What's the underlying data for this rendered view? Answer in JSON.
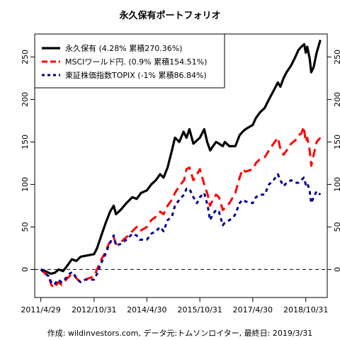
{
  "chart_data": {
    "type": "line",
    "title": "永久保有ポートフォリオ",
    "caption": "作成: wildinvestors.com, データ元:トムソンロイター, 最終日: 2019/3/31",
    "xlabel": "",
    "ylabel": "",
    "x_tick_labels": [
      "2011/4/29",
      "2012/10/31",
      "2014/4/30",
      "2015/10/31",
      "2017/4/30",
      "2018/10/31"
    ],
    "x_tick_dates": [
      "2011-04-29",
      "2012-10-31",
      "2014-04-30",
      "2015-10-31",
      "2017-04-30",
      "2018-10-31"
    ],
    "xlim": [
      "2011-02-25",
      "2019-06-10"
    ],
    "y_ticks": [
      0,
      50,
      100,
      150,
      200,
      250
    ],
    "ylim": [
      -33,
      277
    ],
    "reference_line": 0,
    "grid": false,
    "legend": {
      "position": "top-left",
      "entries": [
        "永久保有 (4.28% 累積270.36%)",
        "MSCIワールド円. (0.9% 累積154.51%)",
        "東証株価指数TOPIX (-1% 累積86.84%)"
      ]
    },
    "series": [
      {
        "name": "永久保有",
        "color": "#000000",
        "style": "solid",
        "points": [
          [
            "2011-04-29",
            0
          ],
          [
            "2011-06-15",
            -2
          ],
          [
            "2011-08-10",
            -5
          ],
          [
            "2011-09-20",
            -4
          ],
          [
            "2011-11-01",
            0
          ],
          [
            "2011-12-15",
            -2
          ],
          [
            "2012-02-01",
            5
          ],
          [
            "2012-03-15",
            12
          ],
          [
            "2012-05-01",
            10
          ],
          [
            "2012-06-15",
            15
          ],
          [
            "2012-08-01",
            16
          ],
          [
            "2012-10-31",
            18
          ],
          [
            "2012-12-01",
            25
          ],
          [
            "2013-01-15",
            40
          ],
          [
            "2013-03-01",
            55
          ],
          [
            "2013-04-15",
            68
          ],
          [
            "2013-05-22",
            75
          ],
          [
            "2013-06-15",
            65
          ],
          [
            "2013-08-01",
            70
          ],
          [
            "2013-10-01",
            78
          ],
          [
            "2013-12-01",
            85
          ],
          [
            "2014-01-15",
            83
          ],
          [
            "2014-03-01",
            90
          ],
          [
            "2014-04-30",
            93
          ],
          [
            "2014-06-15",
            100
          ],
          [
            "2014-08-01",
            105
          ],
          [
            "2014-09-15",
            112
          ],
          [
            "2014-10-20",
            108
          ],
          [
            "2014-12-01",
            120
          ],
          [
            "2015-01-15",
            140
          ],
          [
            "2015-02-15",
            155
          ],
          [
            "2015-04-01",
            150
          ],
          [
            "2015-05-15",
            162
          ],
          [
            "2015-06-15",
            155
          ],
          [
            "2015-07-15",
            165
          ],
          [
            "2015-08-25",
            148
          ],
          [
            "2015-10-31",
            155
          ],
          [
            "2015-12-15",
            165
          ],
          [
            "2016-01-15",
            150
          ],
          [
            "2016-02-15",
            140
          ],
          [
            "2016-03-15",
            145
          ],
          [
            "2016-04-15",
            150
          ],
          [
            "2016-05-15",
            148
          ],
          [
            "2016-06-24",
            145
          ],
          [
            "2016-07-15",
            150
          ],
          [
            "2016-09-01",
            145
          ],
          [
            "2016-11-01",
            145
          ],
          [
            "2016-12-15",
            158
          ],
          [
            "2017-01-15",
            162
          ],
          [
            "2017-02-15",
            165
          ],
          [
            "2017-04-30",
            170
          ],
          [
            "2017-06-01",
            178
          ],
          [
            "2017-07-15",
            185
          ],
          [
            "2017-09-01",
            190
          ],
          [
            "2017-10-15",
            200
          ],
          [
            "2017-12-01",
            210
          ],
          [
            "2018-01-15",
            220
          ],
          [
            "2018-02-10",
            215
          ],
          [
            "2018-03-15",
            225
          ],
          [
            "2018-04-15",
            232
          ],
          [
            "2018-06-01",
            240
          ],
          [
            "2018-07-15",
            250
          ],
          [
            "2018-08-15",
            258
          ],
          [
            "2018-09-15",
            262
          ],
          [
            "2018-10-15",
            265
          ],
          [
            "2018-10-31",
            255
          ],
          [
            "2018-11-15",
            262
          ],
          [
            "2018-12-10",
            248
          ],
          [
            "2018-12-26",
            232
          ],
          [
            "2019-01-20",
            238
          ],
          [
            "2019-02-20",
            255
          ],
          [
            "2019-03-31",
            270
          ]
        ]
      },
      {
        "name": "MSCIワールド円.",
        "color": "#ff0000",
        "style": "dashed",
        "points": [
          [
            "2011-04-29",
            0
          ],
          [
            "2011-06-15",
            -5
          ],
          [
            "2011-07-20",
            -8
          ],
          [
            "2011-08-15",
            -18
          ],
          [
            "2011-09-15",
            -22
          ],
          [
            "2011-10-25",
            -15
          ],
          [
            "2011-12-01",
            -18
          ],
          [
            "2012-01-15",
            -12
          ],
          [
            "2012-02-20",
            -8
          ],
          [
            "2012-03-20",
            -5
          ],
          [
            "2012-05-15",
            -12
          ],
          [
            "2012-06-15",
            -15
          ],
          [
            "2012-08-01",
            -12
          ],
          [
            "2012-10-31",
            -8
          ],
          [
            "2012-12-01",
            0
          ],
          [
            "2013-01-15",
            12
          ],
          [
            "2013-02-15",
            18
          ],
          [
            "2013-04-01",
            30
          ],
          [
            "2013-05-22",
            38
          ],
          [
            "2013-06-15",
            30
          ],
          [
            "2013-08-01",
            32
          ],
          [
            "2013-10-01",
            38
          ],
          [
            "2013-12-01",
            45
          ],
          [
            "2014-01-15",
            50
          ],
          [
            "2014-02-15",
            45
          ],
          [
            "2014-04-30",
            50
          ],
          [
            "2014-06-15",
            58
          ],
          [
            "2014-08-01",
            62
          ],
          [
            "2014-09-15",
            68
          ],
          [
            "2014-10-20",
            65
          ],
          [
            "2014-12-01",
            75
          ],
          [
            "2015-01-15",
            82
          ],
          [
            "2015-02-15",
            90
          ],
          [
            "2015-04-01",
            98
          ],
          [
            "2015-05-20",
            105
          ],
          [
            "2015-06-15",
            118
          ],
          [
            "2015-07-15",
            120
          ],
          [
            "2015-08-25",
            105
          ],
          [
            "2015-10-01",
            112
          ],
          [
            "2015-10-31",
            118
          ],
          [
            "2015-12-15",
            100
          ],
          [
            "2016-01-20",
            88
          ],
          [
            "2016-02-12",
            75
          ],
          [
            "2016-03-15",
            82
          ],
          [
            "2016-04-15",
            88
          ],
          [
            "2016-05-15",
            85
          ],
          [
            "2016-06-24",
            70
          ],
          [
            "2016-07-15",
            72
          ],
          [
            "2016-09-01",
            78
          ],
          [
            "2016-11-01",
            90
          ],
          [
            "2016-12-15",
            108
          ],
          [
            "2017-01-15",
            118
          ],
          [
            "2017-02-15",
            115
          ],
          [
            "2017-04-30",
            118
          ],
          [
            "2017-06-01",
            125
          ],
          [
            "2017-07-15",
            130
          ],
          [
            "2017-09-01",
            132
          ],
          [
            "2017-10-15",
            140
          ],
          [
            "2017-12-01",
            148
          ],
          [
            "2018-01-15",
            155
          ],
          [
            "2018-02-10",
            142
          ],
          [
            "2018-03-15",
            135
          ],
          [
            "2018-04-15",
            140
          ],
          [
            "2018-06-01",
            148
          ],
          [
            "2018-07-15",
            152
          ],
          [
            "2018-08-15",
            158
          ],
          [
            "2018-09-15",
            160
          ],
          [
            "2018-10-10",
            168
          ],
          [
            "2018-10-31",
            150
          ],
          [
            "2018-11-15",
            155
          ],
          [
            "2018-12-10",
            140
          ],
          [
            "2018-12-26",
            122
          ],
          [
            "2019-01-20",
            135
          ],
          [
            "2019-02-20",
            150
          ],
          [
            "2019-03-31",
            155
          ]
        ]
      },
      {
        "name": "東証株価指数TOPIX",
        "color": "#00008b",
        "style": "dotted",
        "points": [
          [
            "2011-04-29",
            0
          ],
          [
            "2011-06-15",
            -5
          ],
          [
            "2011-07-20",
            -8
          ],
          [
            "2011-08-15",
            -15
          ],
          [
            "2011-09-15",
            -18
          ],
          [
            "2011-10-25",
            -12
          ],
          [
            "2011-12-01",
            -15
          ],
          [
            "2012-01-15",
            -10
          ],
          [
            "2012-02-20",
            -5
          ],
          [
            "2012-03-20",
            -3
          ],
          [
            "2012-05-15",
            -12
          ],
          [
            "2012-06-15",
            -15
          ],
          [
            "2012-08-01",
            -12
          ],
          [
            "2012-10-31",
            -12
          ],
          [
            "2012-12-01",
            -5
          ],
          [
            "2013-01-15",
            8
          ],
          [
            "2013-02-15",
            15
          ],
          [
            "2013-04-01",
            28
          ],
          [
            "2013-05-22",
            40
          ],
          [
            "2013-06-15",
            28
          ],
          [
            "2013-08-01",
            30
          ],
          [
            "2013-10-01",
            35
          ],
          [
            "2013-12-01",
            42
          ],
          [
            "2014-01-15",
            40
          ],
          [
            "2014-02-15",
            35
          ],
          [
            "2014-04-30",
            35
          ],
          [
            "2014-06-15",
            42
          ],
          [
            "2014-08-01",
            45
          ],
          [
            "2014-09-15",
            50
          ],
          [
            "2014-10-20",
            45
          ],
          [
            "2014-12-01",
            58
          ],
          [
            "2015-01-15",
            62
          ],
          [
            "2015-02-15",
            75
          ],
          [
            "2015-04-01",
            82
          ],
          [
            "2015-05-20",
            88
          ],
          [
            "2015-06-15",
            95
          ],
          [
            "2015-07-15",
            95
          ],
          [
            "2015-08-25",
            85
          ],
          [
            "2015-10-01",
            78
          ],
          [
            "2015-10-31",
            85
          ],
          [
            "2015-12-15",
            90
          ],
          [
            "2016-01-20",
            75
          ],
          [
            "2016-02-12",
            58
          ],
          [
            "2016-03-15",
            65
          ],
          [
            "2016-04-15",
            70
          ],
          [
            "2016-05-15",
            68
          ],
          [
            "2016-06-24",
            52
          ],
          [
            "2016-07-15",
            55
          ],
          [
            "2016-09-01",
            58
          ],
          [
            "2016-10-15",
            62
          ],
          [
            "2016-11-01",
            65
          ],
          [
            "2016-12-15",
            78
          ],
          [
            "2017-01-15",
            82
          ],
          [
            "2017-02-15",
            80
          ],
          [
            "2017-04-30",
            78
          ],
          [
            "2017-06-01",
            85
          ],
          [
            "2017-07-15",
            88
          ],
          [
            "2017-09-01",
            88
          ],
          [
            "2017-10-15",
            100
          ],
          [
            "2017-12-01",
            105
          ],
          [
            "2018-01-15",
            112
          ],
          [
            "2018-02-10",
            105
          ],
          [
            "2018-03-15",
            98
          ],
          [
            "2018-04-15",
            102
          ],
          [
            "2018-06-01",
            105
          ],
          [
            "2018-07-15",
            102
          ],
          [
            "2018-08-15",
            102
          ],
          [
            "2018-09-15",
            105
          ],
          [
            "2018-10-10",
            108
          ],
          [
            "2018-10-31",
            100
          ],
          [
            "2018-11-15",
            102
          ],
          [
            "2018-12-10",
            92
          ],
          [
            "2018-12-26",
            78
          ],
          [
            "2019-01-20",
            85
          ],
          [
            "2019-02-20",
            92
          ],
          [
            "2019-03-31",
            88
          ]
        ]
      }
    ]
  }
}
